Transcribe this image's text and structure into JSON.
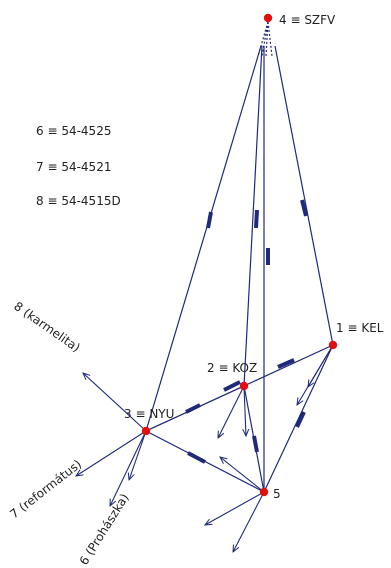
{
  "notes": [
    "6 ≡ 54-4525",
    "7 ≡ 54-4521",
    "8 ≡ 54-4515D"
  ],
  "points": {
    "p4": "4 ≡ SZFV",
    "p1": "1 ≡ KEL",
    "p2": "2 ≡ KOZ",
    "p3": "3 ≡ NYU",
    "p5": "5"
  },
  "directions": {
    "d8": "8 (karmelita)",
    "d7": "7 (református)",
    "d6": "6 (Prohászka)"
  },
  "colors": {
    "line": "#1f2a7a",
    "point": "#e01010",
    "text": "#222222"
  }
}
